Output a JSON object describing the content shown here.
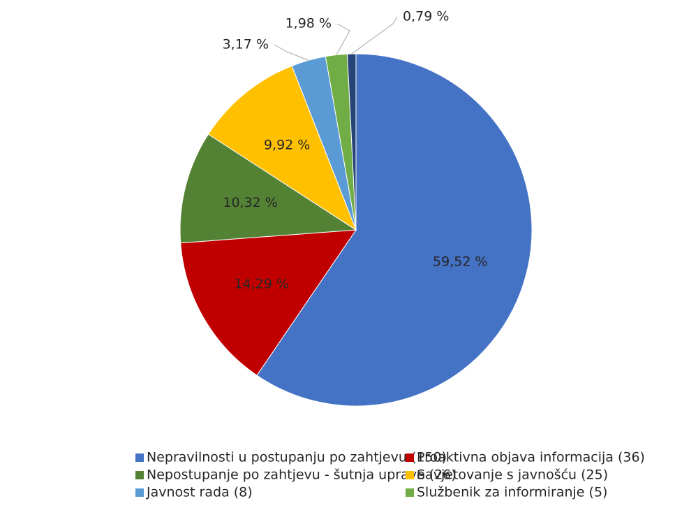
{
  "chart_data": {
    "type": "pie",
    "categories": [
      "Nepravilnosti u postupanju po zahtjevu (150)",
      "Proaktivna objava informacija (36)",
      "Nepostupanje po zahtjevu - šutnja uprave (26)",
      "Savjetovanje s javnošću (25)",
      "Javnost rada (8)",
      "Službenik za informiranje (5)",
      null
    ],
    "values": [
      59.52,
      14.29,
      10.32,
      9.92,
      3.17,
      1.98,
      0.79
    ],
    "value_labels": [
      "59,52 %",
      "14,29 %",
      "10,32 %",
      "9,92 %",
      "3,17 %",
      "1,98 %",
      "0,79 %"
    ],
    "colors": [
      "#4472c4",
      "#c00000",
      "#548235",
      "#ffc000",
      "#5b9bd5",
      "#70ad47",
      "#264478"
    ],
    "legend": "bottom"
  }
}
